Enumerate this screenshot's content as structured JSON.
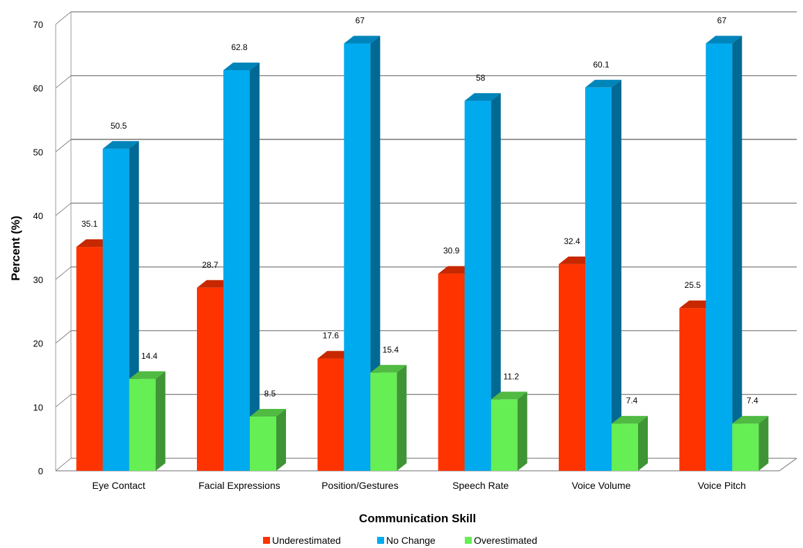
{
  "chart_data": {
    "type": "bar",
    "title": "",
    "xlabel": "Communication Skill",
    "ylabel": "Percent (%)",
    "ylim": [
      0,
      70
    ],
    "yticks": [
      0,
      10,
      20,
      30,
      40,
      50,
      60,
      70
    ],
    "grid": true,
    "legend_position": "bottom",
    "three_d": true,
    "categories": [
      "Eye Contact",
      "Facial Expressions",
      "Position/Gestures",
      "Speech Rate",
      "Voice Volume",
      "Voice Pitch"
    ],
    "series": [
      {
        "name": "Underestimated",
        "color": "#ff3300",
        "values": [
          35.1,
          28.7,
          17.6,
          30.9,
          32.4,
          25.5
        ]
      },
      {
        "name": "No Change",
        "color": "#00aaee",
        "values": [
          50.5,
          62.8,
          67,
          58,
          60.1,
          67
        ]
      },
      {
        "name": "Overestimated",
        "color": "#66ee55",
        "values": [
          14.4,
          8.5,
          15.4,
          11.2,
          7.4,
          7.4
        ]
      }
    ]
  }
}
